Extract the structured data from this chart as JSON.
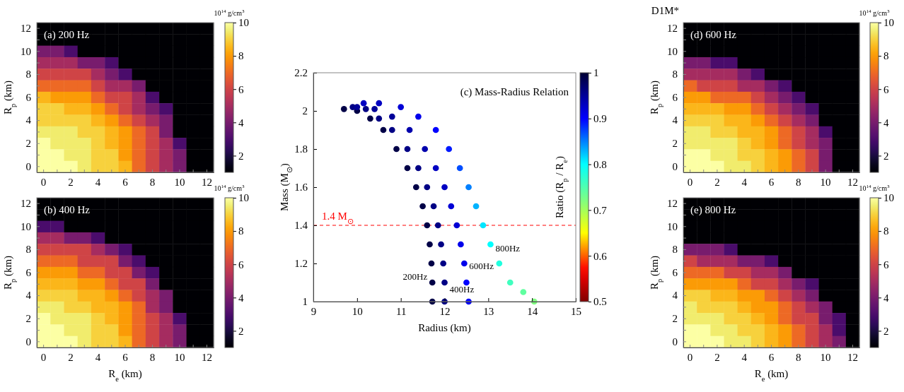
{
  "chart_data": [
    {
      "type": "heatmap",
      "title": "(a) 200 Hz",
      "ylabel": "R$_{p}$ (km)",
      "clabel": "10$^{14}$ g/cm$^{3}$",
      "clim": [
        1,
        10
      ],
      "cticks": [
        2,
        4,
        6,
        8,
        10
      ],
      "categories": [
        "0",
        null,
        "2",
        null,
        "4",
        null,
        "6",
        null,
        "8",
        null,
        "10",
        null,
        "12"
      ],
      "y_categories": [
        "12",
        null,
        "10",
        null,
        "8",
        null,
        "6",
        null,
        "4",
        null,
        "2",
        null,
        "0"
      ],
      "cells": [
        [
          1,
          1,
          1,
          1,
          1,
          1,
          1,
          1,
          1,
          1,
          1,
          1,
          1
        ],
        [
          1,
          1,
          1,
          1,
          1,
          1,
          1,
          1,
          1,
          1,
          1,
          1,
          1
        ],
        [
          4,
          4,
          3,
          1,
          1,
          1,
          1,
          1,
          1,
          1,
          1,
          1,
          1
        ],
        [
          5,
          5,
          5,
          4,
          4,
          3,
          1,
          1,
          1,
          1,
          1,
          1,
          1
        ],
        [
          6,
          6,
          6,
          6,
          5,
          4,
          3,
          1,
          1,
          1,
          1,
          1,
          1
        ],
        [
          7,
          7,
          7,
          7,
          6,
          5,
          5,
          4,
          1,
          1,
          1,
          1,
          1
        ],
        [
          8.5,
          8,
          8,
          8,
          7,
          6,
          6,
          5,
          3,
          1,
          1,
          1,
          1
        ],
        [
          9,
          9,
          8.5,
          8.5,
          8,
          7,
          6,
          5,
          4,
          3,
          1,
          1,
          1
        ],
        [
          9,
          9,
          9,
          9,
          8.5,
          8,
          7,
          6,
          5,
          4,
          1,
          1,
          1
        ],
        [
          9.5,
          9.5,
          9.5,
          9,
          9,
          8.5,
          8,
          7,
          6,
          4,
          1,
          1,
          1
        ],
        [
          10,
          9.5,
          9.5,
          9.5,
          9,
          8.5,
          8,
          7,
          6,
          5,
          3,
          1,
          1
        ],
        [
          10,
          10,
          9.5,
          9.5,
          9,
          9,
          8,
          7,
          6,
          5,
          4,
          1,
          1
        ],
        [
          10,
          10,
          10,
          9.5,
          9,
          9,
          8.5,
          7,
          6,
          5,
          4,
          1,
          1
        ]
      ]
    },
    {
      "type": "heatmap",
      "title": "(b) 400 Hz",
      "xlabel": "R$_{e}$ (km)",
      "ylabel": "R$_{p}$ (km)",
      "clabel": "10$^{14}$ g/cm$^{3}$",
      "clim": [
        1,
        10
      ],
      "cticks": [
        2,
        4,
        6,
        8,
        10
      ],
      "categories": [
        "0",
        null,
        "2",
        null,
        "4",
        null,
        "6",
        null,
        "8",
        null,
        "10",
        null,
        "12"
      ],
      "y_categories": [
        "12",
        null,
        "10",
        null,
        "8",
        null,
        "6",
        null,
        "4",
        null,
        "2",
        null,
        "0"
      ],
      "cells": [
        [
          1,
          1,
          1,
          1,
          1,
          1,
          1,
          1,
          1,
          1,
          1,
          1,
          1
        ],
        [
          1,
          1,
          1,
          1,
          1,
          1,
          1,
          1,
          1,
          1,
          1,
          1,
          1
        ],
        [
          3,
          3,
          1,
          1,
          1,
          1,
          1,
          1,
          1,
          1,
          1,
          1,
          1
        ],
        [
          5,
          5,
          4,
          4,
          3,
          1,
          1,
          1,
          1,
          1,
          1,
          1,
          1
        ],
        [
          6,
          6,
          6,
          6,
          5,
          4,
          3,
          1,
          1,
          1,
          1,
          1,
          1
        ],
        [
          7,
          7,
          7,
          6,
          6,
          6,
          4,
          3,
          1,
          1,
          1,
          1,
          1
        ],
        [
          8,
          8,
          8,
          7,
          7,
          6,
          6,
          4,
          3,
          1,
          1,
          1,
          1
        ],
        [
          8.5,
          8.5,
          8.5,
          8,
          8,
          7,
          6,
          6,
          4,
          1,
          1,
          1,
          1
        ],
        [
          9,
          9,
          9,
          8.5,
          8.5,
          8,
          7,
          6,
          5,
          4,
          1,
          1,
          1
        ],
        [
          9.5,
          9.5,
          9,
          9,
          8.5,
          8.5,
          8,
          7,
          5,
          4,
          1,
          1,
          1
        ],
        [
          10,
          9.5,
          9.5,
          9.5,
          9,
          8.5,
          8,
          7,
          6,
          5,
          3,
          1,
          1
        ],
        [
          10,
          10,
          9.5,
          9.5,
          9,
          9,
          8,
          7,
          6,
          5,
          4,
          1,
          1
        ],
        [
          10,
          10,
          10,
          9.5,
          9,
          9,
          8.5,
          7,
          6,
          5,
          4,
          1,
          1
        ]
      ]
    },
    {
      "type": "scatter",
      "title": "(c) Mass-Radius Relation",
      "xlabel": "Radius (km)",
      "ylabel": "Mass (M$_{⊙}$)",
      "clabel": "Ratio (R$_{p}$ / R$_{e}$)",
      "xlim": [
        9,
        15
      ],
      "ylim": [
        1,
        2.2
      ],
      "xticks": [
        9,
        10,
        11,
        12,
        13,
        14,
        15
      ],
      "yticks": [
        1,
        1.2,
        1.4,
        1.6,
        1.8,
        2,
        2.2
      ],
      "clim": [
        0.5,
        1
      ],
      "cticks": [
        0.5,
        0.6,
        0.7,
        0.8,
        0.9,
        1
      ],
      "marker": "circle",
      "ref_lines": [
        {
          "axis": "y",
          "value": 1.4,
          "label": "1.4 M$_{⊙}$",
          "color": "#ff0000",
          "line_style": "dashed"
        }
      ],
      "series": [
        {
          "name": "200Hz",
          "x": [
            11.72,
            11.72,
            11.7,
            11.66,
            11.6,
            11.5,
            11.35,
            11.15,
            10.9,
            10.6,
            10.3,
            10.0,
            9.7
          ],
          "values": [
            1.0,
            1.1,
            1.2,
            1.3,
            1.4,
            1.5,
            1.6,
            1.7,
            1.8,
            1.9,
            1.96,
            2.0,
            2.01
          ],
          "color": "#000047"
        },
        {
          "name": "400Hz",
          "x": [
            12.0,
            12.0,
            11.97,
            11.92,
            11.85,
            11.75,
            11.6,
            11.4,
            11.15,
            10.8,
            10.5,
            10.2,
            9.9
          ],
          "values": [
            1.0,
            1.1,
            1.2,
            1.3,
            1.4,
            1.5,
            1.6,
            1.7,
            1.8,
            1.9,
            1.96,
            2.01,
            2.02
          ],
          "color": "#000085"
        },
        {
          "name": "600Hz",
          "x": [
            12.55,
            12.5,
            12.45,
            12.37,
            12.28,
            12.15,
            12.0,
            11.8,
            11.55,
            11.2,
            10.8,
            10.4,
            10.0
          ],
          "values": [
            1.0,
            1.1,
            1.2,
            1.3,
            1.4,
            1.5,
            1.6,
            1.7,
            1.8,
            1.9,
            1.97,
            2.01,
            2.02
          ],
          "colors": [
            "#0000ff",
            "#0000ff",
            "#0000eb",
            "#0000eb",
            "#0000d6",
            "#0000d6",
            "#0000c2",
            "#0000c2",
            "#0000ad",
            "#0000ad",
            "#000099",
            "#000099",
            "#000099"
          ]
        },
        {
          "name": "800Hz",
          "x": [
            14.05,
            13.8,
            13.5,
            13.25,
            13.05,
            12.88,
            12.72,
            12.55,
            12.35,
            12.1,
            11.8,
            11.4,
            11.0,
            10.5,
            10.15
          ],
          "values": [
            1.0,
            1.05,
            1.1,
            1.2,
            1.3,
            1.4,
            1.5,
            1.6,
            1.7,
            1.8,
            1.9,
            1.97,
            2.02,
            2.04,
            2.04
          ],
          "colors": [
            "#80ff80",
            "#60ffa0",
            "#40ffbf",
            "#20ffdf",
            "#00ffff",
            "#00e6ff",
            "#00b3ff",
            "#0080ff",
            "#004dff",
            "#001aff",
            "#0000ff",
            "#0000eb",
            "#0000d6",
            "#0000c2",
            "#0000c2"
          ]
        }
      ]
    },
    {
      "type": "heatmap",
      "title": "(d) 600 Hz",
      "ylabel": "R$_{p}$ (km)",
      "clabel": "10$^{14}$ g/cm$^{3}$",
      "annotations": [
        "D1M*"
      ],
      "clim": [
        1,
        10
      ],
      "cticks": [
        2,
        4,
        6,
        8,
        10
      ],
      "categories": [
        "0",
        null,
        "2",
        null,
        "4",
        null,
        "6",
        null,
        "8",
        null,
        "10",
        null,
        "12"
      ],
      "y_categories": [
        "12",
        null,
        "10",
        null,
        "8",
        null,
        "6",
        null,
        "4",
        null,
        "2",
        null,
        "0"
      ],
      "cells": [
        [
          1,
          1,
          1,
          1,
          1,
          1,
          1,
          1,
          1,
          1,
          1,
          1,
          1
        ],
        [
          1,
          1,
          1,
          1,
          1,
          1,
          1,
          1,
          1,
          1,
          1,
          1,
          1
        ],
        [
          1,
          1,
          1,
          1,
          1,
          1,
          1,
          1,
          1,
          1,
          1,
          1,
          1
        ],
        [
          4,
          4,
          3,
          3,
          1,
          1,
          1,
          1,
          1,
          1,
          1,
          1,
          1
        ],
        [
          5,
          5,
          5,
          5,
          4,
          3,
          1,
          1,
          1,
          1,
          1,
          1,
          1
        ],
        [
          7,
          6,
          6,
          6,
          5,
          5,
          4,
          3,
          1,
          1,
          1,
          1,
          1
        ],
        [
          8,
          8,
          7,
          7,
          7,
          6,
          5,
          4,
          3,
          1,
          1,
          1,
          1
        ],
        [
          8.5,
          8.5,
          8.5,
          8,
          8,
          7,
          6,
          5,
          4,
          3,
          1,
          1,
          1
        ],
        [
          9,
          9,
          9,
          8.5,
          8.5,
          8,
          7,
          6,
          5,
          4,
          1,
          1,
          1
        ],
        [
          9.5,
          9.5,
          9,
          9,
          8.5,
          8.5,
          8,
          7,
          6,
          5,
          3,
          1,
          1
        ],
        [
          9.5,
          9.5,
          9.5,
          9.5,
          9,
          8.5,
          8,
          7,
          6,
          5,
          4,
          1,
          1
        ],
        [
          10,
          10,
          9.5,
          9.5,
          9,
          9,
          8.5,
          8,
          7,
          6,
          4,
          1,
          1
        ],
        [
          10,
          10,
          10,
          9.5,
          9.5,
          9,
          8.5,
          8,
          7,
          6,
          4,
          1,
          1
        ]
      ]
    },
    {
      "type": "heatmap",
      "title": "(e) 800 Hz",
      "xlabel": "R$_{e}$ (km)",
      "ylabel": "R$_{p}$ (km)",
      "clabel": "10$^{14}$ g/cm$^{3}$",
      "clim": [
        1,
        10
      ],
      "cticks": [
        2,
        4,
        6,
        8,
        10
      ],
      "categories": [
        "0",
        null,
        "2",
        null,
        "4",
        null,
        "6",
        null,
        "8",
        null,
        "10",
        null,
        "12"
      ],
      "y_categories": [
        "12",
        null,
        "10",
        null,
        "8",
        null,
        "6",
        null,
        "4",
        null,
        "2",
        null,
        "0"
      ],
      "cells": [
        [
          1,
          1,
          1,
          1,
          1,
          1,
          1,
          1,
          1,
          1,
          1,
          1,
          1
        ],
        [
          1,
          1,
          1,
          1,
          1,
          1,
          1,
          1,
          1,
          1,
          1,
          1,
          1
        ],
        [
          1,
          1,
          1,
          1,
          1,
          1,
          1,
          1,
          1,
          1,
          1,
          1,
          1
        ],
        [
          1,
          1,
          1,
          1,
          1,
          1,
          1,
          1,
          1,
          1,
          1,
          1,
          1
        ],
        [
          4,
          4,
          4,
          3,
          1,
          1,
          1,
          1,
          1,
          1,
          1,
          1,
          1
        ],
        [
          6,
          5,
          5,
          5,
          4,
          4,
          3,
          1,
          1,
          1,
          1,
          1,
          1
        ],
        [
          7,
          7,
          7,
          6,
          6,
          5,
          5,
          4,
          1,
          1,
          1,
          1,
          1
        ],
        [
          8,
          8,
          8,
          8,
          7,
          6,
          6,
          5,
          4,
          3,
          1,
          1,
          1
        ],
        [
          9,
          9,
          8.5,
          8.5,
          8,
          8,
          7,
          6,
          5,
          4,
          1,
          1,
          1
        ],
        [
          9.5,
          9,
          9,
          9,
          8.5,
          8,
          8,
          7,
          6,
          5,
          4,
          1,
          1
        ],
        [
          9.5,
          9.5,
          9.5,
          9,
          9,
          8.5,
          8,
          7,
          6,
          6,
          4,
          3,
          1
        ],
        [
          10,
          10,
          9.5,
          9.5,
          9,
          9,
          8.5,
          8,
          7,
          6,
          5,
          3,
          1
        ],
        [
          10,
          10,
          10,
          9.5,
          9.5,
          9,
          8.5,
          8,
          7,
          6,
          5,
          4,
          1
        ]
      ]
    }
  ]
}
